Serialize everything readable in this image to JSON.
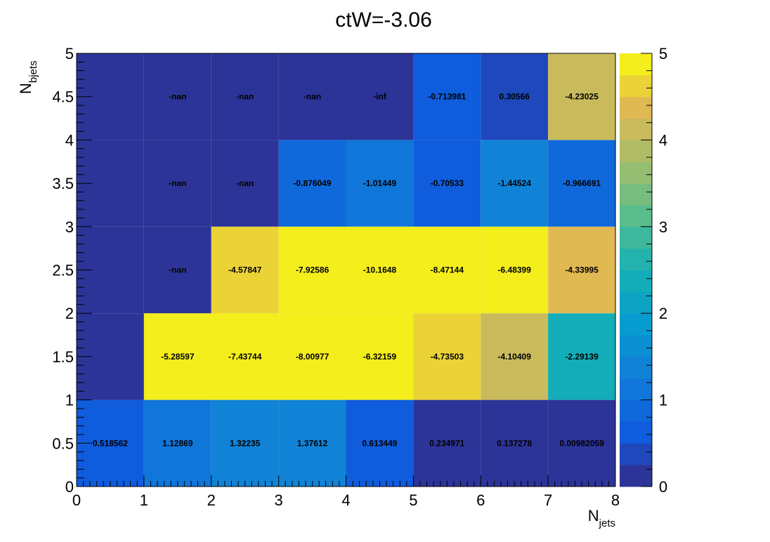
{
  "chart_data": {
    "type": "heatmap",
    "title": "ctW=-3.06",
    "xlabel": "N",
    "xlabel_sub": "jets",
    "ylabel": "N",
    "ylabel_sub": "bjets",
    "xlim": [
      0,
      8
    ],
    "ylim": [
      0,
      5
    ],
    "x_ticks": [
      "0",
      "1",
      "2",
      "3",
      "4",
      "5",
      "6",
      "7",
      "8"
    ],
    "y_ticks": [
      "0",
      "0.5",
      "1",
      "1.5",
      "2",
      "2.5",
      "3",
      "3.5",
      "4",
      "4.5",
      "5"
    ],
    "colorbar": {
      "range": [
        0,
        5
      ],
      "ticks": [
        "0",
        "1",
        "2",
        "3",
        "4",
        "5"
      ],
      "colormap": "parula"
    },
    "grid": false,
    "cells": [
      {
        "x": 0.5,
        "y": 0.5,
        "value": 0.518562,
        "label": "0.518562"
      },
      {
        "x": 1.5,
        "y": 0.5,
        "value": 1.12869,
        "label": "1.12869"
      },
      {
        "x": 2.5,
        "y": 0.5,
        "value": 1.32235,
        "label": "1.32235"
      },
      {
        "x": 3.5,
        "y": 0.5,
        "value": 1.37612,
        "label": "1.37612"
      },
      {
        "x": 4.5,
        "y": 0.5,
        "value": 0.613449,
        "label": "0.613449"
      },
      {
        "x": 5.5,
        "y": 0.5,
        "value": 0.234971,
        "label": "0.234971"
      },
      {
        "x": 6.5,
        "y": 0.5,
        "value": 0.137278,
        "label": "0.137278"
      },
      {
        "x": 7.5,
        "y": 0.5,
        "value": 0.00982059,
        "label": "0.00982059"
      },
      {
        "x": 0.5,
        "y": 1.5,
        "value": 0.2,
        "label": ""
      },
      {
        "x": 1.5,
        "y": 1.5,
        "value": -5.28597,
        "label": "-5.28597"
      },
      {
        "x": 2.5,
        "y": 1.5,
        "value": -7.43744,
        "label": "-7.43744"
      },
      {
        "x": 3.5,
        "y": 1.5,
        "value": -8.00977,
        "label": "-8.00977"
      },
      {
        "x": 4.5,
        "y": 1.5,
        "value": -6.32159,
        "label": "-6.32159"
      },
      {
        "x": 5.5,
        "y": 1.5,
        "value": -4.73503,
        "label": "-4.73503"
      },
      {
        "x": 6.5,
        "y": 1.5,
        "value": -4.10409,
        "label": "-4.10409"
      },
      {
        "x": 7.5,
        "y": 1.5,
        "value": -2.29139,
        "label": "-2.29139"
      },
      {
        "x": 0.5,
        "y": 2.5,
        "value": 0.2,
        "label": ""
      },
      {
        "x": 1.5,
        "y": 2.5,
        "value": null,
        "label": "-nan"
      },
      {
        "x": 2.5,
        "y": 2.5,
        "value": -4.57847,
        "label": "-4.57847"
      },
      {
        "x": 3.5,
        "y": 2.5,
        "value": -7.92586,
        "label": "-7.92586"
      },
      {
        "x": 4.5,
        "y": 2.5,
        "value": -10.1648,
        "label": "-10.1648"
      },
      {
        "x": 5.5,
        "y": 2.5,
        "value": -8.47144,
        "label": "-8.47144"
      },
      {
        "x": 6.5,
        "y": 2.5,
        "value": -6.48399,
        "label": "-6.48399"
      },
      {
        "x": 7.5,
        "y": 2.5,
        "value": -4.33995,
        "label": "-4.33995"
      },
      {
        "x": 0.5,
        "y": 3.5,
        "value": 0.2,
        "label": ""
      },
      {
        "x": 1.5,
        "y": 3.5,
        "value": null,
        "label": "-nan"
      },
      {
        "x": 2.5,
        "y": 3.5,
        "value": null,
        "label": "-nan"
      },
      {
        "x": 3.5,
        "y": 3.5,
        "value": -0.876049,
        "label": "-0.876049"
      },
      {
        "x": 4.5,
        "y": 3.5,
        "value": -1.01449,
        "label": "-1.01449"
      },
      {
        "x": 5.5,
        "y": 3.5,
        "value": -0.70533,
        "label": "-0.70533"
      },
      {
        "x": 6.5,
        "y": 3.5,
        "value": -1.44524,
        "label": "-1.44524"
      },
      {
        "x": 7.5,
        "y": 3.5,
        "value": -0.966691,
        "label": "-0.966691"
      },
      {
        "x": 0.5,
        "y": 4.5,
        "value": 0.2,
        "label": ""
      },
      {
        "x": 1.5,
        "y": 4.5,
        "value": null,
        "label": "-nan"
      },
      {
        "x": 2.5,
        "y": 4.5,
        "value": null,
        "label": "-nan"
      },
      {
        "x": 3.5,
        "y": 4.5,
        "value": null,
        "label": "-nan"
      },
      {
        "x": 4.5,
        "y": 4.5,
        "value": null,
        "label": "-inf"
      },
      {
        "x": 5.5,
        "y": 4.5,
        "value": -0.713981,
        "label": "-0.713981"
      },
      {
        "x": 6.5,
        "y": 4.5,
        "value": 0.30566,
        "label": "0.30566"
      },
      {
        "x": 7.5,
        "y": 4.5,
        "value": -4.23025,
        "label": "-4.23025"
      }
    ]
  }
}
